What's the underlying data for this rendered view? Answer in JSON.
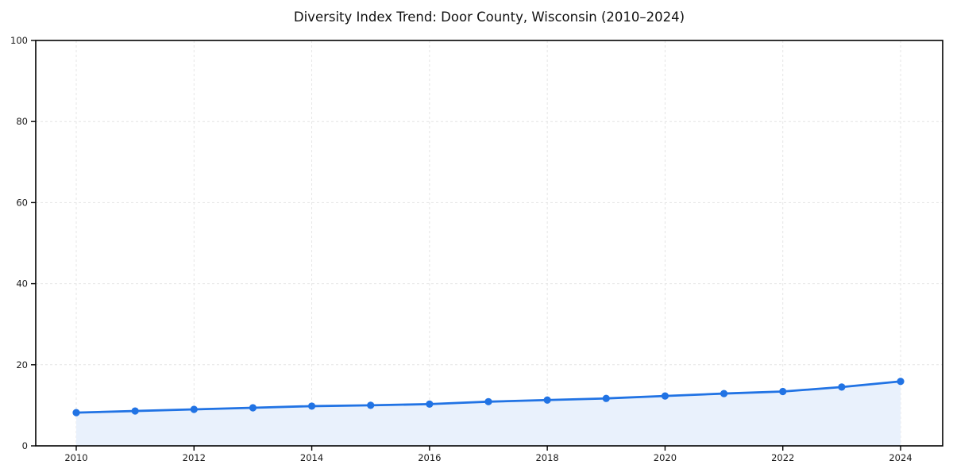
{
  "figure": {
    "background": "#ffffff"
  },
  "chart_data": {
    "type": "line",
    "title": "Diversity Index Trend: Door County, Wisconsin (2010–2024)",
    "x": [
      2010,
      2011,
      2012,
      2013,
      2014,
      2015,
      2016,
      2017,
      2018,
      2019,
      2020,
      2021,
      2022,
      2023,
      2024
    ],
    "series": [
      {
        "name": "Diversity Index",
        "values": [
          8.2,
          8.6,
          9.0,
          9.4,
          9.8,
          10.0,
          10.3,
          10.9,
          11.3,
          11.7,
          12.3,
          12.9,
          13.4,
          14.5,
          15.9
        ]
      }
    ],
    "xticks": [
      2010,
      2012,
      2014,
      2016,
      2018,
      2020,
      2022,
      2024
    ],
    "yticks": [
      0,
      20,
      40,
      60,
      80,
      100
    ],
    "ylim": [
      0,
      100
    ],
    "xlabel": "",
    "ylabel": "",
    "grid": true,
    "grid_style": "dashed",
    "legend": "none",
    "area_fill": true,
    "markers": true,
    "colors": {
      "line": "#2173e4",
      "marker": "#2173e4",
      "area": "#e9f1fc",
      "grid": "#e4e4e4",
      "axis": "#000000",
      "tick_label": "#1a1a1a",
      "title": "#111111"
    }
  }
}
